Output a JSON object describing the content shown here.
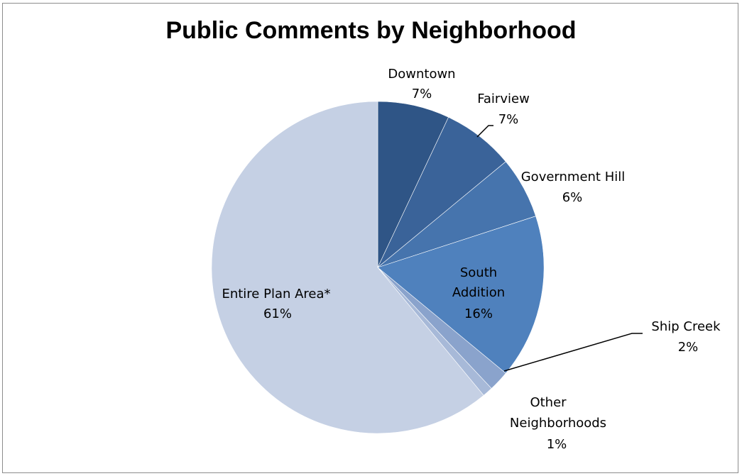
{
  "chart_data": {
    "type": "pie",
    "title": "Public Comments by Neighborhood",
    "slices": [
      {
        "label": "Downtown",
        "value": 7,
        "percent_label": "7%",
        "color": "#2f5586"
      },
      {
        "label": "Fairview",
        "value": 7,
        "percent_label": "7%",
        "color": "#3a6399"
      },
      {
        "label": "Government Hill",
        "value": 6,
        "percent_label": "6%",
        "color": "#4674ad"
      },
      {
        "label": "South Addition",
        "value": 16,
        "percent_label": "16%",
        "color": "#4f81bd"
      },
      {
        "label": "Ship Creek",
        "value": 2,
        "percent_label": "2%",
        "color": "#8aa3cc"
      },
      {
        "label": "Other Neighborhoods",
        "value": 1,
        "percent_label": "1%",
        "color": "#a7b9d8"
      },
      {
        "label": "Entire Plan Area*",
        "value": 61,
        "percent_label": "61%",
        "color": "#c5d0e4"
      }
    ],
    "start_angle_deg": 0,
    "direction": "clockwise",
    "legend": "none"
  }
}
